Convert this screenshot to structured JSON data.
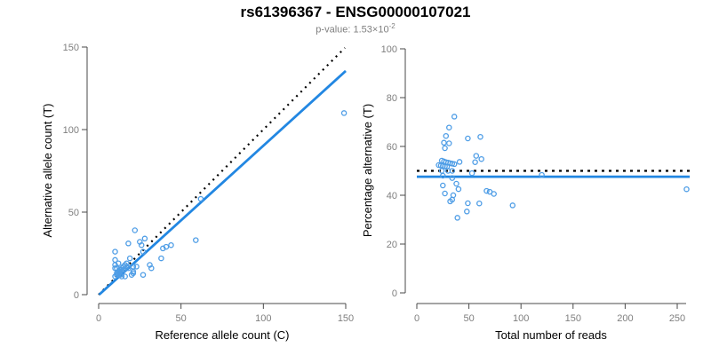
{
  "header": {
    "title": "rs61396367 - ENSG00000107021",
    "pvalue_prefix": "p-value: 1.53×10",
    "pvalue_exponent": "-2"
  },
  "colors": {
    "fit_line_blue": "#2287E2",
    "point_blue": "#4E9DE6",
    "identity_line_black": "#000000",
    "tick_label_gray": "#7F7F7F",
    "axis_gray": "#4A4A4A"
  },
  "chart_data": [
    {
      "type": "scatter",
      "panel": "left",
      "xlabel": "Reference allele count (C)",
      "ylabel": "Alternative allele count (T)",
      "xlim": [
        0,
        150
      ],
      "ylim": [
        0,
        150
      ],
      "xticks": [
        0,
        50,
        100,
        150
      ],
      "yticks": [
        0,
        50,
        100,
        150
      ],
      "grid": false,
      "identity_line": {
        "style": "dotted",
        "x1": 0,
        "y1": 0,
        "x2": 149.5,
        "y2": 149.5
      },
      "fit_line": {
        "style": "solid",
        "x1": 0.3,
        "y1": 0,
        "x2": 150,
        "y2": 135.5
      },
      "points_rule": "x = ref allele count, y = alt allele count (from allele_counts)"
    },
    {
      "type": "scatter",
      "panel": "right",
      "xlabel": "Total number of reads",
      "ylabel": "Percentage alternative (T)",
      "xlim": [
        0,
        262
      ],
      "ylim": [
        0,
        100
      ],
      "xticks": [
        0,
        50,
        100,
        150,
        200,
        250
      ],
      "yticks": [
        0,
        20,
        40,
        60,
        80,
        100
      ],
      "grid": false,
      "null_line": {
        "style": "dotted",
        "y": 50
      },
      "fit_line": {
        "style": "solid",
        "y": 47.6
      },
      "points_rule": "x = ref+alt, y = 100*alt/(ref+alt) (from allele_counts)"
    }
  ],
  "allele_counts": [
    [
      10,
      26
    ],
    [
      10,
      21
    ],
    [
      10,
      18
    ],
    [
      12,
      19
    ],
    [
      10,
      16
    ],
    [
      18,
      31
    ],
    [
      22,
      39
    ],
    [
      11,
      16
    ],
    [
      11,
      13
    ],
    [
      13,
      15
    ],
    [
      10,
      11
    ],
    [
      11,
      12
    ],
    [
      12,
      13
    ],
    [
      13,
      14
    ],
    [
      14,
      15
    ],
    [
      12,
      14
    ],
    [
      14,
      16
    ],
    [
      15,
      17
    ],
    [
      16,
      18
    ],
    [
      15,
      15
    ],
    [
      12,
      12
    ],
    [
      17,
      17
    ],
    [
      17,
      19
    ],
    [
      19,
      22
    ],
    [
      25,
      32
    ],
    [
      26,
      30
    ],
    [
      28,
      34
    ],
    [
      27,
      26
    ],
    [
      62,
      58
    ],
    [
      13,
      12
    ],
    [
      18,
      16
    ],
    [
      14,
      11
    ],
    [
      21,
      17
    ],
    [
      23,
      17
    ],
    [
      16,
      11
    ],
    [
      21,
      13
    ],
    [
      39,
      28
    ],
    [
      41,
      29
    ],
    [
      44,
      30
    ],
    [
      20,
      12
    ],
    [
      21,
      14
    ],
    [
      31,
      18
    ],
    [
      38,
      22
    ],
    [
      32,
      16
    ],
    [
      59,
      33
    ],
    [
      27,
      12
    ],
    [
      149,
      110
    ]
  ]
}
